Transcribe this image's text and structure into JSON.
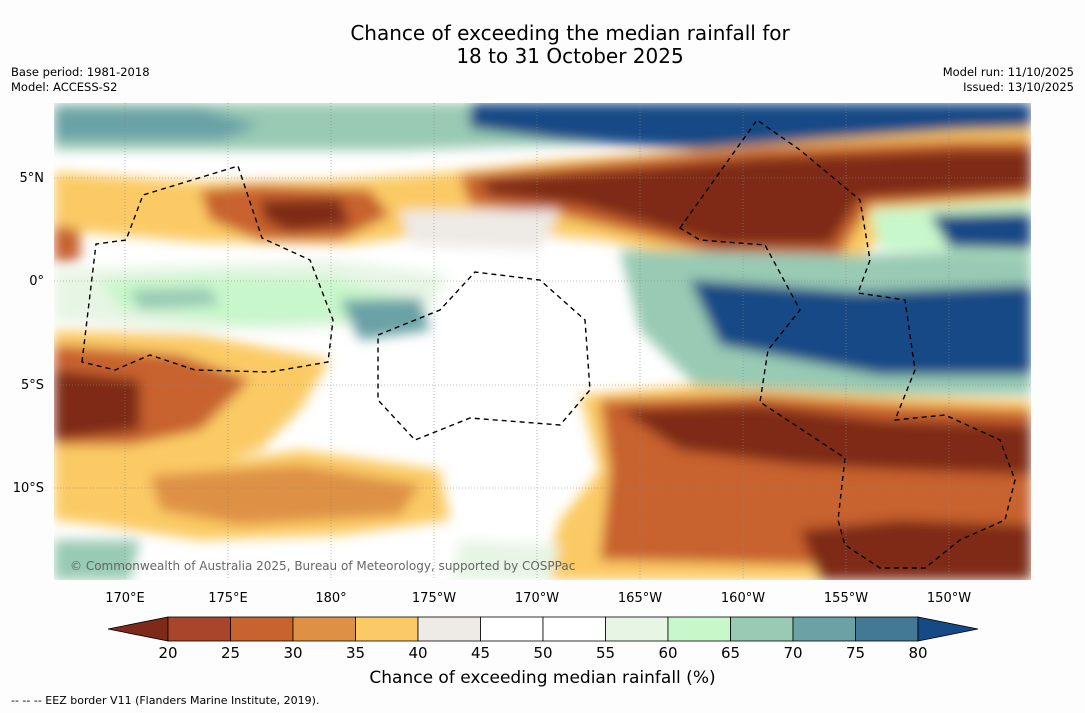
{
  "header": {
    "title_line1": "Chance of exceeding the median rainfall for",
    "title_line2": "18 to 31 October 2025",
    "base_period": "Base period: 1981-2018",
    "model": "Model: ACCESS-S2",
    "model_run": "Model run: 11/10/2025",
    "issued": "Issued: 13/10/2025"
  },
  "map": {
    "lat_labels": [
      "5°N",
      "0°",
      "5°S",
      "10°S"
    ],
    "lon_labels": [
      "170°E",
      "175°E",
      "180°",
      "175°W",
      "170°W",
      "165°W",
      "160°W",
      "155°W",
      "150°W"
    ],
    "copyright": "© Commonwealth of Australia 2025, Bureau of Meteorology, supported by COSPPac"
  },
  "colorbar": {
    "title": "Chance of exceeding median rainfall (%)",
    "ticks": [
      "20",
      "25",
      "30",
      "35",
      "40",
      "45",
      "50",
      "55",
      "60",
      "65",
      "70",
      "75",
      "80"
    ],
    "colors": [
      "#7e2a19",
      "#a9452a",
      "#c8622f",
      "#de9144",
      "#fbca65",
      "#eeeae6",
      "#ffffff",
      "#ffffff",
      "#e7f5e5",
      "#c8f7cb",
      "#98cab4",
      "#6ba2a6",
      "#437995",
      "#164a85"
    ]
  },
  "footnote": "--  --  -- EEZ border V11 (Flanders Marine Institute, 2019)."
}
